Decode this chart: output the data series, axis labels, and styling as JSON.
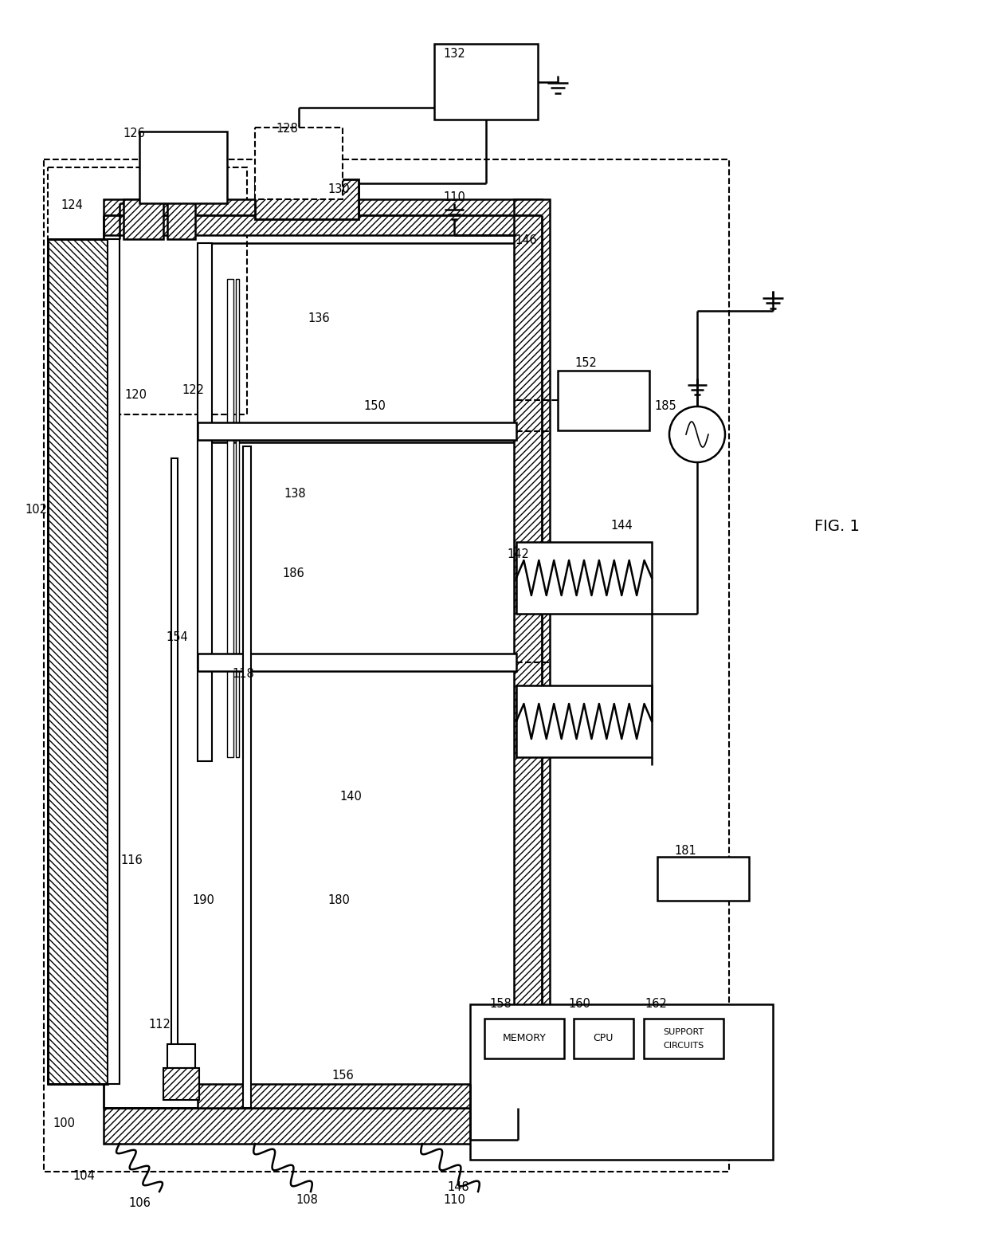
{
  "title": "FIG. 1",
  "bg_color": "#ffffff",
  "line_color": "#000000",
  "components": {
    "fig_label": "FIG. 1",
    "memory_text": "MEMORY",
    "cpu_text": "CPU",
    "support_text1": "SUPPORT",
    "support_text2": "CIRCUITS"
  }
}
